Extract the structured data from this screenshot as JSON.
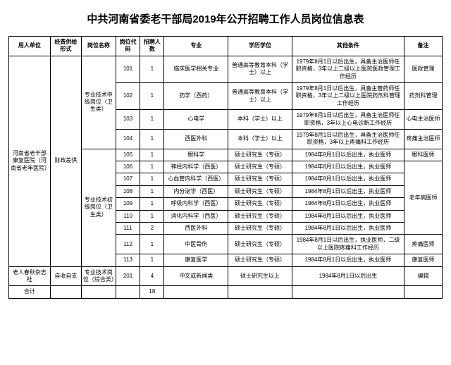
{
  "title": "中共河南省委老干部局2019年公开招聘工作人员岗位信息表",
  "headers": {
    "unit": "用人单位",
    "fund": "经费供给形式",
    "post": "岗位名称",
    "code": "岗位代码",
    "num": "招聘人数",
    "major": "专业",
    "edu": "学历学位",
    "other": "其他条件",
    "note": "备注"
  },
  "unitA": "河南省老干部康复医院（河南省老年医院）",
  "fundA": "财政差供",
  "postMid": "专业技术中级岗位（卫生类）",
  "postJun": "专业技术初级岗位（卫生类）",
  "rows": [
    {
      "code": "101",
      "num": "1",
      "major": "临床医学相关专业",
      "edu": "普通高等教育本科（学士）以上",
      "other": "1979年8月1日以后出生，具备主治医师任职资格，3年以上二级以上医院医政管理工作经历",
      "note": "医政管理"
    },
    {
      "code": "102",
      "num": "1",
      "major": "药学（西药）",
      "edu": "普通高等教育本科（学士）以上",
      "other": "1979年8月1日以后出生，具备主管药师任职资格，3年以上二级以上医院药剂科管理工作经历",
      "note": "药剂科管理"
    },
    {
      "code": "103",
      "num": "1",
      "major": "心电学",
      "edu": "本科（学士）以上",
      "other": "1979年8月1日以后出生，具备主治医师任职资格，3年以上心电诊断工作经历",
      "note": "心电主治医师"
    },
    {
      "code": "104",
      "num": "1",
      "major": "西医外科",
      "edu": "本科（学士）以上",
      "other": "1979年8月1日以后出生，具备主治医师任职资格，3年以上疼痛科工作经历",
      "note": "疼痛主治医师"
    },
    {
      "code": "105",
      "num": "1",
      "major": "眼科学",
      "edu": "硕士研究生（专硕）",
      "other": "1984年8月1日以后出生，执业医师",
      "note": "眼科医师"
    },
    {
      "code": "106",
      "num": "1",
      "major": "神经内科学（西医）",
      "edu": "硕士研究生（专硕）",
      "other": "1984年8月1日以后出生，执业医师",
      "note": ""
    },
    {
      "code": "107",
      "num": "1",
      "major": "心血管内科学（西医）",
      "edu": "硕士研究生（专硕）",
      "other": "1984年8月1日以后出生，执业医师",
      "note": ""
    },
    {
      "code": "108",
      "num": "1",
      "major": "内分泌学（西医）",
      "edu": "硕士研究生（专硕）",
      "other": "1984年8月1日以后出生，执业医师",
      "note": ""
    },
    {
      "code": "109",
      "num": "1",
      "major": "呼吸内科学（西医）",
      "edu": "硕士研究生（专硕）",
      "other": "1984年8月1日以后出生，执业医师",
      "note": ""
    },
    {
      "code": "110",
      "num": "1",
      "major": "消化内科学（西医）",
      "edu": "硕士研究生（专硕）",
      "other": "1984年8月1日以后出生，执业医师",
      "note": ""
    },
    {
      "code": "111",
      "num": "2",
      "major": "西医外科",
      "edu": "硕士研究生（专硕）",
      "other": "1984年8月1日以后出生，执业医师",
      "note": ""
    },
    {
      "code": "112",
      "num": "1",
      "major": "中医骨伤",
      "edu": "硕士研究生（专硕）",
      "other": "1984年8月1日以后出生，执业医师，二级以上医院疼痛科工作经历",
      "note": "疼痛医师"
    },
    {
      "code": "113",
      "num": "1",
      "major": "康复医学",
      "edu": "硕士研究生（专硕）",
      "other": "1984年8月1日以后出生，执业医师",
      "note": "康复医师"
    }
  ],
  "noteOld": "老年病医师",
  "unitB": "老人春秋杂志社",
  "fundB": "自收自支",
  "postB": "专业技术岗位（综合类）",
  "rowB": {
    "code": "201",
    "num": "4",
    "major": "中文或新闻类",
    "edu": "硕士研究生以上",
    "other": "1984年8月1日以后出生",
    "note": "编辑"
  },
  "totalLabel": "合计",
  "totalNum": "18"
}
